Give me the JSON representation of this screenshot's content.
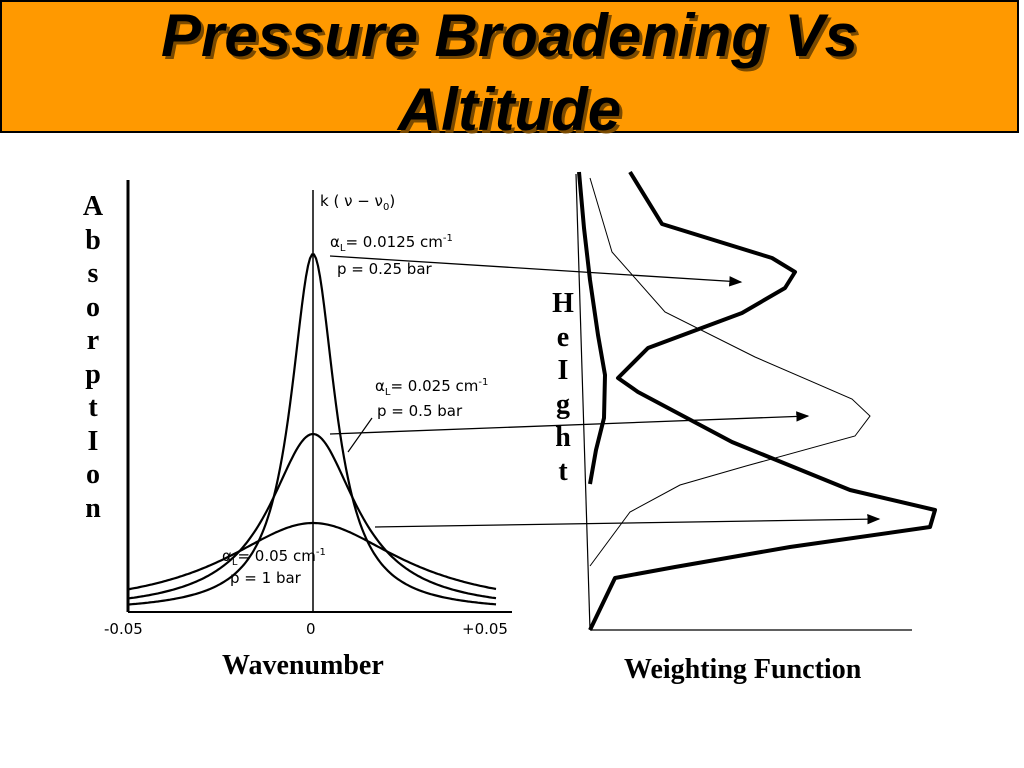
{
  "title": {
    "line1": "Pressure Broadening Vs",
    "line2": "Altitude"
  },
  "absorption_axis": {
    "letters": [
      "A",
      "b",
      "s",
      "o",
      "r",
      "p",
      "t",
      "I",
      "o",
      "n"
    ]
  },
  "height_axis": {
    "letters": [
      "H",
      "e",
      "I",
      "g",
      "h",
      "t"
    ]
  },
  "plot": {
    "y_axis_label": "k ( ν − ν",
    "y_axis_label_sub": "0",
    "y_axis_label_end": ")",
    "tick_labels": [
      "-0.05",
      "0",
      "+0.05"
    ],
    "curves": [
      {
        "alpha": "α",
        "alpha_sub": "L",
        "alpha_text": "= 0.0125 cm",
        "alpha_sup": "-1",
        "pressure": "p = 0.25 bar"
      },
      {
        "alpha": "α",
        "alpha_sub": "L",
        "alpha_text": "= 0.025 cm",
        "alpha_sup": "-1",
        "pressure": "p = 0.5 bar"
      },
      {
        "alpha": "α",
        "alpha_sub": "L",
        "alpha_text": "= 0.05 cm",
        "alpha_sup": "-1",
        "pressure": "p = 1 bar"
      }
    ]
  },
  "captions": {
    "left": "Wavenumber",
    "right": "Weighting Function"
  }
}
